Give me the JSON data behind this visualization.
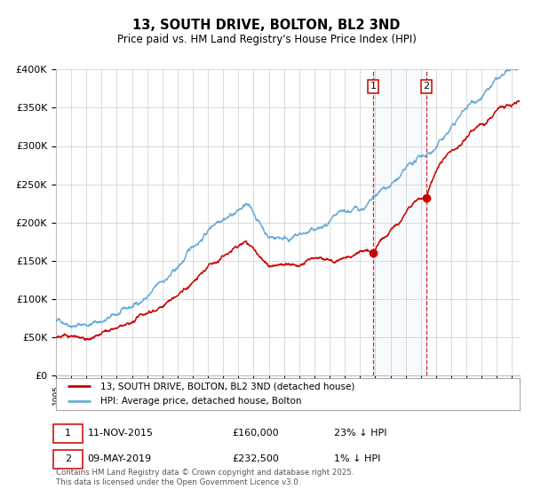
{
  "title": "13, SOUTH DRIVE, BOLTON, BL2 3ND",
  "subtitle": "Price paid vs. HM Land Registry's House Price Index (HPI)",
  "hpi_color": "#6aaed6",
  "price_color": "#cc0000",
  "background_color": "#ffffff",
  "grid_color": "#cccccc",
  "sale1_year": 2015.87,
  "sale2_year": 2019.37,
  "sale1_price": 160000,
  "sale2_price": 232500,
  "legend_line1": "13, SOUTH DRIVE, BOLTON, BL2 3ND (detached house)",
  "legend_line2": "HPI: Average price, detached house, Bolton",
  "sale1_date": "11-NOV-2015",
  "sale2_date": "09-MAY-2019",
  "sale1_amount": "£160,000",
  "sale2_amount": "£232,500",
  "sale1_pct": "23% ↓ HPI",
  "sale2_pct": "1% ↓ HPI",
  "footer": "Contains HM Land Registry data © Crown copyright and database right 2025.\nThis data is licensed under the Open Government Licence v3.0.",
  "ylim": [
    0,
    400000
  ],
  "xlim_start": 1995.0,
  "xlim_end": 2025.5,
  "yticks": [
    0,
    50000,
    100000,
    150000,
    200000,
    250000,
    300000,
    350000,
    400000
  ],
  "yticklabels": [
    "£0",
    "£50K",
    "£100K",
    "£150K",
    "£200K",
    "£250K",
    "£300K",
    "£350K",
    "£400K"
  ]
}
